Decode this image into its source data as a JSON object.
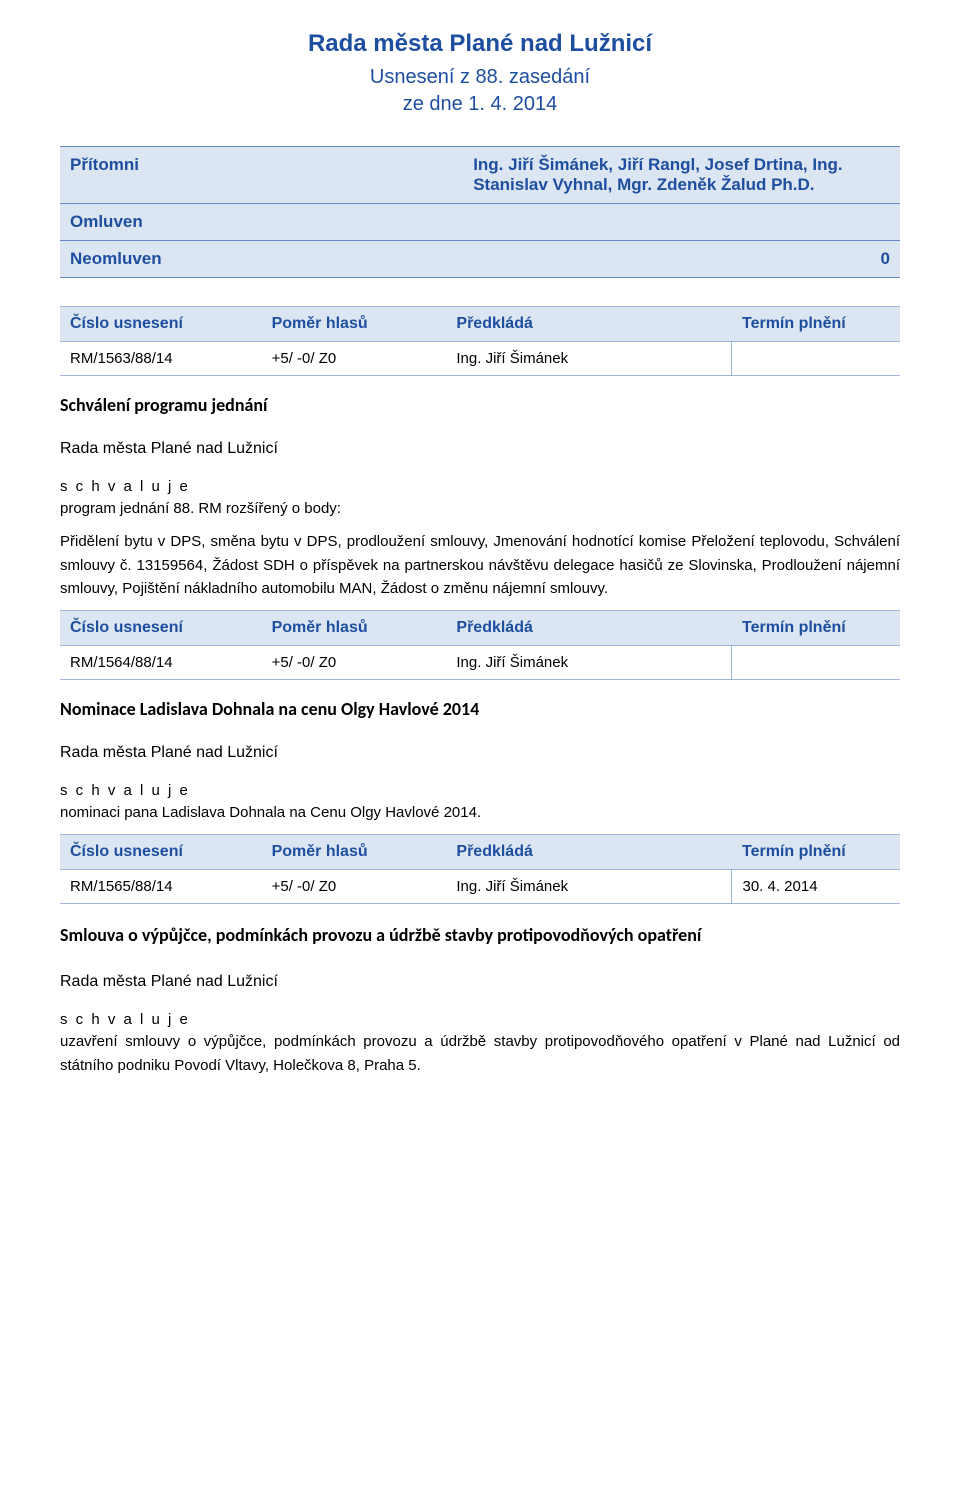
{
  "header": {
    "title": "Rada města Plané nad Lužnicí",
    "subtitle": "Usnesení z 88. zasedání",
    "date": "ze dne 1. 4. 2014"
  },
  "attendance": {
    "pritomni_label": "Přítomni",
    "pritomni_value": "Ing. Jiří Šimánek, Jiří Rangl, Josef Drtina, Ing. Stanislav Vyhnal, Mgr. Zdeněk Žalud Ph.D.",
    "omluven_label": "Omluven",
    "omluven_value": "",
    "neomluven_label": "Neomluven",
    "neomluven_value": "0"
  },
  "columns": {
    "c1": "Číslo usnesení",
    "c2": "Poměr hlasů",
    "c3": "Předkládá",
    "c4": "Termín plnění"
  },
  "resolutions": [
    {
      "num": "RM/1563/88/14",
      "votes": "+5/ -0/ Z0",
      "presenter": "Ing. Jiří Šimánek",
      "deadline": "",
      "heading": "Schválení programu jednání",
      "rada": "Rada města Plané nad Lužnicí",
      "schvaluje": "s c h v a l u j e",
      "line1": "program jednání 88. RM rozšířený o body:",
      "body": "Přidělení bytu v DPS, směna bytu v DPS, prodloužení smlouvy, Jmenování hodnotící komise Přeložení teplovodu, Schválení smlouvy č. 13159564, Žádost SDH o příspěvek na partnerskou návštěvu delegace hasičů ze Slovinska, Prodloužení nájemní smlouvy, Pojištění nákladního automobilu MAN, Žádost o změnu nájemní smlouvy."
    },
    {
      "num": "RM/1564/88/14",
      "votes": "+5/ -0/ Z0",
      "presenter": "Ing. Jiří Šimánek",
      "deadline": "",
      "heading": "Nominace Ladislava Dohnala na cenu Olgy Havlové 2014",
      "rada": "Rada města Plané nad Lužnicí",
      "schvaluje": "s c h v a l u j e",
      "body": "nominaci pana Ladislava Dohnala na Cenu Olgy Havlové 2014."
    },
    {
      "num": "RM/1565/88/14",
      "votes": "+5/ -0/ Z0",
      "presenter": "Ing. Jiří Šimánek",
      "deadline": "30. 4. 2014",
      "heading": "Smlouva o výpůjčce, podmínkách provozu a údržbě stavby protipovodňových opatření",
      "rada": "Rada města Plané nad Lužnicí",
      "schvaluje": "s c h v a l u j e",
      "body": "uzavření smlouvy o výpůjčce, podmínkách provozu a údržbě stavby protipovodňového opatření v Plané nad Lužnicí od státního podniku Povodí Vltavy, Holečkova 8, Praha 5."
    }
  ],
  "colors": {
    "heading_color": "#1e4ea0",
    "table_header_bg": "#dce6f2",
    "border_color": "#a0b4d8"
  }
}
